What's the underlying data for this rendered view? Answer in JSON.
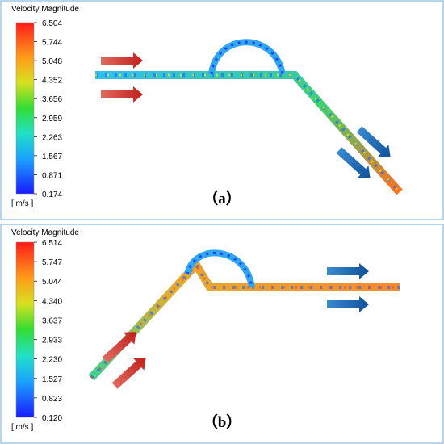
{
  "panels": [
    {
      "colorbar_title": "Velocity Magnitude",
      "ticks": [
        "6.504",
        "5.744",
        "5.048",
        "4.352",
        "3.656",
        "2.959",
        "2.263",
        "1.567",
        "0.871",
        "0.174"
      ],
      "unit": "[ m/s ]",
      "label": "（a）"
    },
    {
      "colorbar_title": "Velocity Magnitude",
      "ticks": [
        "6.514",
        "5.747",
        "5.044",
        "4.340",
        "3.637",
        "2.933",
        "2.230",
        "1.527",
        "0.823",
        "0.120"
      ],
      "unit": "[ m/s ]",
      "label": "（b）"
    }
  ]
}
